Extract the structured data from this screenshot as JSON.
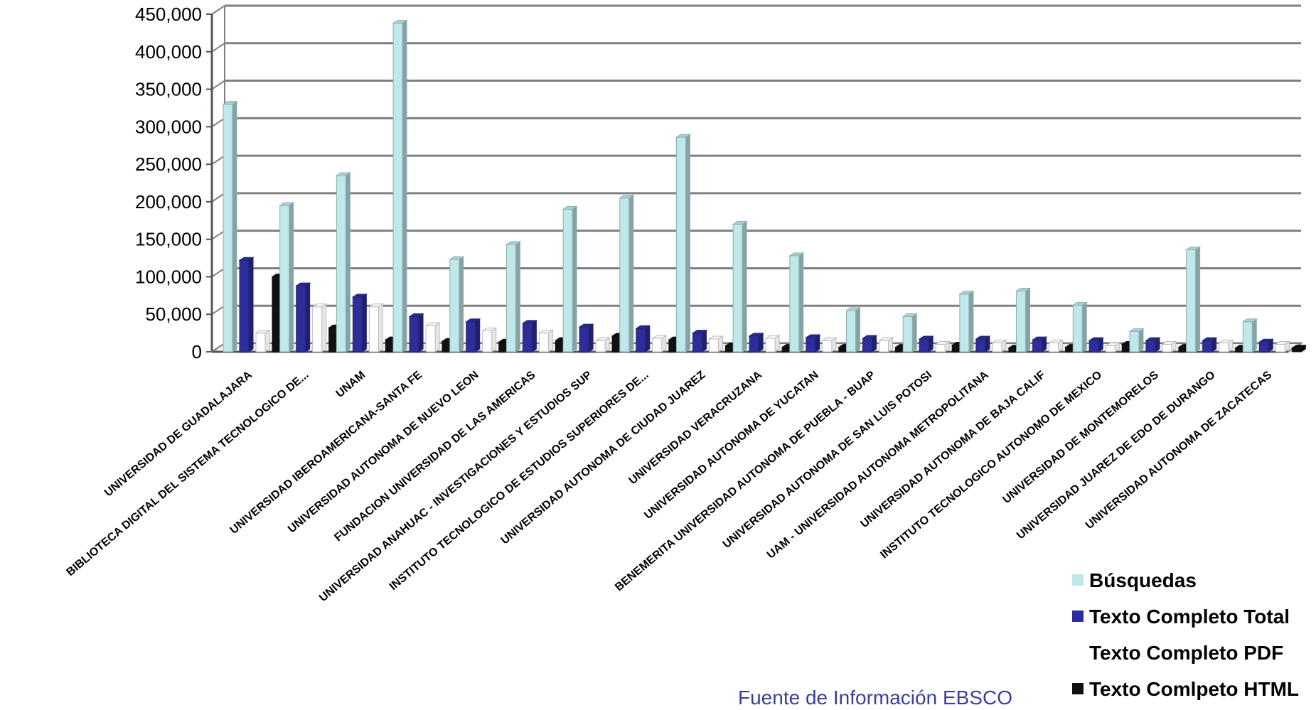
{
  "chart_data": {
    "type": "bar",
    "ylim": [
      0,
      450000
    ],
    "yticks": [
      "0",
      "50,000",
      "100,000",
      "150,000",
      "200,000",
      "250,000",
      "300,000",
      "350,000",
      "400,000",
      "450,000"
    ],
    "ytick_values": [
      0,
      50000,
      100000,
      150000,
      200000,
      250000,
      300000,
      350000,
      400000,
      450000
    ],
    "grid": true,
    "legend_position": "bottom-right",
    "categories": [
      "UNIVERSIDAD DE GUADALAJARA",
      "BIBLIOTECA DIGITAL DEL SISTEMA TECNOLOGICO DE...",
      "UNAM",
      "UNIVERSIDAD IBEROAMERICANA-SANTA FE",
      "UNIVERSIDAD AUTONOMA DE NUEVO LEON",
      "FUNDACION UNIVERSIDAD DE LAS AMERICAS",
      "UNIVERSIDAD ANAHUAC - INVESTIGACIONES Y ESTUDIOS SUP",
      "INSTITUTO TECNOLOGICO DE ESTUDIOS SUPERIORES DE...",
      "UNIVERSIDAD AUTONOMA DE CIUDAD JUAREZ",
      "UNIVERSIDAD VERACRUZANA",
      "UNIVERSIDAD AUTONOMA DE YUCATAN",
      "BENEMERITA UNIVERSIDAD AUTONOMA DE PUEBLA - BUAP",
      "UNIVERSIDAD AUTONOMA DE SAN LUIS POTOSI",
      "UAM - UNIVERSIDAD AUTONOMA METROPOLITANA",
      "UNIVERSIDAD AUTONOMA DE BAJA CALIF",
      "INSTITUTO TECNOLOGICO AUTONOMO DE MEXICO",
      "UNIVERSIDAD DE MONTEMORELOS",
      "UNIVERSIDAD JUAREZ DE EDO DE DURANGO",
      "UNIVERSIDAD AUTONOMA DE ZACATECAS"
    ],
    "series": [
      {
        "name": "Búsquedas",
        "color": "#bfe8ea",
        "values": [
          330000,
          195000,
          235000,
          438000,
          123000,
          143000,
          190000,
          205000,
          286000,
          170000,
          128000,
          55000,
          47000,
          77000,
          81000,
          62000,
          27000,
          136000,
          40000
        ]
      },
      {
        "name": "Texto Completo Total",
        "color": "#2e2e9a",
        "values": [
          122000,
          88000,
          73000,
          47000,
          40000,
          38000,
          33000,
          31000,
          25000,
          21000,
          19000,
          18000,
          17000,
          17000,
          16000,
          15000,
          15000,
          15000,
          13000
        ]
      },
      {
        "name": "Texto Completo PDF",
        "color": "#ffffff",
        "values": [
          25000,
          60000,
          60000,
          35000,
          28000,
          25000,
          15000,
          18000,
          17000,
          18000,
          15000,
          15000,
          10000,
          12000,
          12000,
          8000,
          10000,
          12000,
          10000
        ]
      },
      {
        "name": "Texto Comlpeto HTML",
        "color": "#111111",
        "values": [
          100000,
          32000,
          16000,
          14000,
          13000,
          15000,
          21000,
          16000,
          8000,
          6000,
          6000,
          6000,
          9000,
          5000,
          6000,
          10000,
          6000,
          5000,
          5000
        ]
      }
    ]
  },
  "source_note": "Fuente de Información EBSCO"
}
